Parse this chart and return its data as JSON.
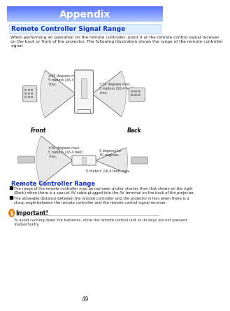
{
  "title": "Appendix",
  "section_title": "Remote Controller Signal Range",
  "body_text_line1": "When performing an operation on the remote controller, point it at the remote control signal receiver",
  "body_text_line2": "on the back or front of the projector. The following illustration shows the range of the remote controller",
  "body_text_line3": "signal.",
  "range_title": "Remote Controller Range",
  "bullet1_line1": "The range of the remote controller may be narrower and/or shorter than that shown on the right",
  "bullet1_line2": "(Back) when there is a special AV cable plugged into the AV terminal on the back of the projector.",
  "bullet2_line1": "The allowable distance between the remote controller and the projector is less when there is a",
  "bullet2_line2": "sharp angle between the remote controller and the remote control signal receiver.",
  "important_label": "Important!",
  "important_text_line1": "To avoid running down the batteries, store the remote control unit so its keys are not pressed",
  "important_text_line2": "inadvertently.",
  "page_number": "49",
  "angle_label_tl": "±30 degrees max.",
  "dist_label_tl": "5 meters (16.4 feet)\nmax.",
  "angle_label_tr": "±30 degrees max.",
  "dist_label_tr": "5 meters (16.4 feet)\nmax.",
  "angle_label_bl": "±30 degrees max.",
  "dist_label_bl": "5 meters (16.4 feet)\nmax.",
  "angle_label_br": "5 degrees to\n30 degrees.",
  "dist_label_br": "5 meters (16.4 feet) max.",
  "front_label": "Front",
  "back_label": "Back"
}
